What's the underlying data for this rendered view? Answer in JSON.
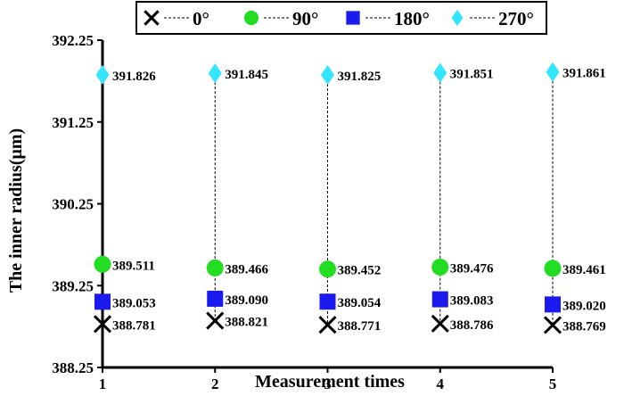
{
  "chart_data": {
    "type": "scatter",
    "title": "",
    "xlabel": "Measurement times",
    "ylabel": "The inner radius(μm)",
    "categories": [
      "1",
      "2",
      "3",
      "4",
      "5"
    ],
    "ylim": [
      388.25,
      392.25
    ],
    "yticks": [
      "392.25",
      "391.25",
      "390.25",
      "389.25",
      "388.25"
    ],
    "legend_position": "top",
    "grid": false,
    "series": [
      {
        "name": "0°",
        "marker": "cross",
        "color": "#000000",
        "values": [
          388.781,
          388.821,
          388.771,
          388.786,
          388.769
        ],
        "labels": [
          "388.781",
          "388.821",
          "388.771",
          "388.786",
          "388.769"
        ]
      },
      {
        "name": "90°",
        "marker": "circle",
        "color": "#22dd22",
        "values": [
          389.511,
          389.466,
          389.452,
          389.476,
          389.461
        ],
        "labels": [
          "389.511",
          "389.466",
          "389.452",
          "389.476",
          "389.461"
        ]
      },
      {
        "name": "180°",
        "marker": "square",
        "color": "#1a1aee",
        "values": [
          389.053,
          389.09,
          389.054,
          389.083,
          389.02
        ],
        "labels": [
          "389.053",
          "389.090",
          "389.054",
          "389.083",
          "389.020"
        ]
      },
      {
        "name": "270°",
        "marker": "diamond",
        "color": "#33e6ff",
        "values": [
          391.826,
          391.845,
          391.825,
          391.851,
          391.861
        ],
        "labels": [
          "391.826",
          "391.845",
          "391.825",
          "391.851",
          "391.861"
        ]
      }
    ]
  }
}
